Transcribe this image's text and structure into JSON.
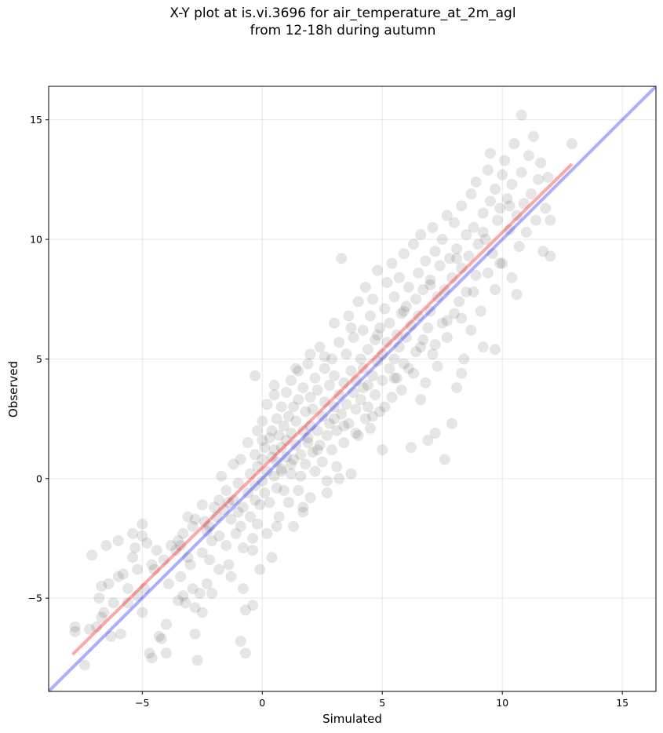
{
  "chart_data": {
    "type": "scatter",
    "title": "X-Y plot at is.vi.3696 for air_temperature_at_2m_agl\nfrom 12-18h during autumn",
    "xlabel": "Simulated",
    "ylabel": "Observed",
    "xlim": [
      -8.9,
      16.4
    ],
    "ylim": [
      -8.9,
      16.4
    ],
    "xticks": [
      -5,
      0,
      5,
      10,
      15
    ],
    "yticks": [
      -5,
      0,
      5,
      10,
      15
    ],
    "xtick_labels": [
      "−5",
      "0",
      "5",
      "10",
      "15"
    ],
    "ytick_labels": [
      "−5",
      "0",
      "5",
      "10",
      "15"
    ],
    "grid": true,
    "point_color": "#000000",
    "point_alpha": 0.1,
    "fit_line": {
      "color": "#ff0000",
      "alpha": 0.35,
      "x": [
        -7.9,
        12.9
      ],
      "y": [
        -7.35,
        13.15
      ]
    },
    "identity_line": {
      "color": "#0000ff",
      "alpha": 0.32,
      "x": [
        -8.9,
        16.4
      ],
      "y": [
        -8.9,
        16.4
      ]
    },
    "points": [
      [
        -7.8,
        -6.4
      ],
      [
        -7.8,
        -6.2
      ],
      [
        -7.4,
        -7.8
      ],
      [
        -7.2,
        -6.3
      ],
      [
        -7.1,
        -3.2
      ],
      [
        -6.9,
        -6.2
      ],
      [
        -6.8,
        -5.0
      ],
      [
        -6.7,
        -4.5
      ],
      [
        -6.6,
        -5.6
      ],
      [
        -6.5,
        -2.8
      ],
      [
        -6.4,
        -4.4
      ],
      [
        -6.3,
        -6.6
      ],
      [
        -6.2,
        -5.2
      ],
      [
        -6.0,
        -4.1
      ],
      [
        -6.0,
        -2.6
      ],
      [
        -5.9,
        -6.5
      ],
      [
        -5.8,
        -4.0
      ],
      [
        -5.6,
        -5.2
      ],
      [
        -5.4,
        -3.3
      ],
      [
        -5.3,
        -2.9
      ],
      [
        -5.2,
        -4.9
      ],
      [
        -5.2,
        -3.8
      ],
      [
        -5.0,
        -2.4
      ],
      [
        -5.0,
        -1.9
      ],
      [
        -5.0,
        -5.6
      ],
      [
        -4.9,
        -4.6
      ],
      [
        -4.8,
        -2.7
      ],
      [
        -4.7,
        -7.3
      ],
      [
        -4.6,
        -7.5
      ],
      [
        -4.4,
        -3.0
      ],
      [
        -4.3,
        -6.6
      ],
      [
        -4.2,
        -6.7
      ],
      [
        -4.1,
        -3.4
      ],
      [
        -4.0,
        -7.3
      ],
      [
        -4.0,
        -6.1
      ],
      [
        -3.9,
        -4.4
      ],
      [
        -3.8,
        -2.8
      ],
      [
        -3.6,
        -3.0
      ],
      [
        -3.5,
        -2.6
      ],
      [
        -3.4,
        -4.1
      ],
      [
        -3.3,
        -4.9
      ],
      [
        -3.3,
        -2.3
      ],
      [
        -3.2,
        -5.2
      ],
      [
        -3.1,
        -3.3
      ],
      [
        -3.1,
        -1.6
      ],
      [
        -3.0,
        -3.6
      ],
      [
        -2.9,
        -2.0
      ],
      [
        -2.9,
        -4.6
      ],
      [
        -2.8,
        -5.4
      ],
      [
        -2.8,
        -1.7
      ],
      [
        -2.8,
        -6.5
      ],
      [
        -2.7,
        -7.6
      ],
      [
        -2.6,
        -4.8
      ],
      [
        -2.5,
        -3.1
      ],
      [
        -2.5,
        -5.6
      ],
      [
        -2.4,
        -1.8
      ],
      [
        -2.3,
        -4.4
      ],
      [
        -2.2,
        -3.4
      ],
      [
        -2.2,
        -2.0
      ],
      [
        -2.1,
        -2.6
      ],
      [
        -2.1,
        -4.8
      ],
      [
        -2.0,
        -1.2
      ],
      [
        -1.9,
        -1.6
      ],
      [
        -1.8,
        -3.8
      ],
      [
        -1.8,
        -2.4
      ],
      [
        -1.8,
        -0.9
      ],
      [
        -1.7,
        0.1
      ],
      [
        -1.6,
        -1.3
      ],
      [
        -1.5,
        -2.8
      ],
      [
        -1.5,
        -0.5
      ],
      [
        -1.4,
        -3.6
      ],
      [
        -1.3,
        -1.7
      ],
      [
        -1.2,
        0.6
      ],
      [
        -1.2,
        -0.9
      ],
      [
        -1.1,
        -2.3
      ],
      [
        -1.0,
        -1.4
      ],
      [
        -1.0,
        -0.2
      ],
      [
        -0.9,
        -2.0
      ],
      [
        -0.9,
        0.8
      ],
      [
        -0.8,
        -1.2
      ],
      [
        -0.8,
        -2.9
      ],
      [
        -0.8,
        -4.6
      ],
      [
        -0.7,
        -7.3
      ],
      [
        -0.7,
        -5.5
      ],
      [
        -0.6,
        -0.6
      ],
      [
        -0.6,
        1.5
      ],
      [
        -0.5,
        -1.6
      ],
      [
        -0.5,
        0.2
      ],
      [
        -0.4,
        -2.5
      ],
      [
        -0.4,
        -5.3
      ],
      [
        -0.3,
        -0.9
      ],
      [
        -0.3,
        1.0
      ],
      [
        -0.2,
        -1.9
      ],
      [
        -0.2,
        2.0
      ],
      [
        -0.2,
        0.5
      ],
      [
        -0.1,
        -3.8
      ],
      [
        -0.1,
        -1.1
      ],
      [
        0.0,
        0.8
      ],
      [
        0.0,
        -0.1
      ],
      [
        0.0,
        2.4
      ],
      [
        0.1,
        1.3
      ],
      [
        0.1,
        -0.6
      ],
      [
        0.2,
        3.1
      ],
      [
        0.2,
        -2.3
      ],
      [
        0.2,
        0.3
      ],
      [
        0.3,
        1.7
      ],
      [
        0.3,
        -1.0
      ],
      [
        0.4,
        0.9
      ],
      [
        0.4,
        2.0
      ],
      [
        0.4,
        -3.3
      ],
      [
        0.5,
        0.1
      ],
      [
        0.5,
        1.2
      ],
      [
        0.5,
        3.5
      ],
      [
        0.6,
        -0.4
      ],
      [
        0.6,
        2.5
      ],
      [
        0.6,
        0.7
      ],
      [
        0.7,
        1.8
      ],
      [
        0.7,
        -1.6
      ],
      [
        0.8,
        0.3
      ],
      [
        0.8,
        3.0
      ],
      [
        0.8,
        1.3
      ],
      [
        0.9,
        2.2
      ],
      [
        0.9,
        -0.5
      ],
      [
        1.0,
        0.9
      ],
      [
        1.0,
        3.6
      ],
      [
        1.0,
        1.6
      ],
      [
        1.1,
        -1.0
      ],
      [
        1.1,
        2.6
      ],
      [
        1.2,
        0.2
      ],
      [
        1.2,
        4.1
      ],
      [
        1.2,
        1.9
      ],
      [
        1.3,
        -2.0
      ],
      [
        1.3,
        3.0
      ],
      [
        1.3,
        0.8
      ],
      [
        1.4,
        1.4
      ],
      [
        1.4,
        2.4
      ],
      [
        1.5,
        -0.5
      ],
      [
        1.5,
        4.5
      ],
      [
        1.5,
        3.3
      ],
      [
        1.6,
        1.0
      ],
      [
        1.6,
        0.1
      ],
      [
        1.7,
        2.0
      ],
      [
        1.7,
        3.8
      ],
      [
        1.7,
        -1.4
      ],
      [
        1.8,
        2.8
      ],
      [
        1.8,
        0.6
      ],
      [
        1.9,
        1.5
      ],
      [
        1.9,
        4.8
      ],
      [
        2.0,
        2.2
      ],
      [
        2.0,
        3.4
      ],
      [
        2.0,
        -0.8
      ],
      [
        2.1,
        1.1
      ],
      [
        2.1,
        2.9
      ],
      [
        2.2,
        0.3
      ],
      [
        2.2,
        4.2
      ],
      [
        2.3,
        2.0
      ],
      [
        2.3,
        3.7
      ],
      [
        2.4,
        1.4
      ],
      [
        2.4,
        5.5
      ],
      [
        2.5,
        2.6
      ],
      [
        2.5,
        0.7
      ],
      [
        2.6,
        3.2
      ],
      [
        2.6,
        4.6
      ],
      [
        2.7,
        1.8
      ],
      [
        2.7,
        -0.1
      ],
      [
        2.8,
        3.9
      ],
      [
        2.8,
        2.3
      ],
      [
        2.9,
        5.0
      ],
      [
        2.9,
        1.2
      ],
      [
        3.0,
        3.0
      ],
      [
        3.0,
        6.5
      ],
      [
        3.0,
        4.3
      ],
      [
        3.1,
        2.0
      ],
      [
        3.1,
        0.5
      ],
      [
        3.2,
        3.5
      ],
      [
        3.2,
        5.7
      ],
      [
        3.3,
        2.7
      ],
      [
        3.3,
        9.2
      ],
      [
        3.4,
        4.0
      ],
      [
        3.4,
        1.5
      ],
      [
        3.5,
        3.1
      ],
      [
        3.5,
        5.2
      ],
      [
        3.6,
        2.3
      ],
      [
        3.6,
        6.8
      ],
      [
        3.7,
        4.5
      ],
      [
        3.7,
        0.2
      ],
      [
        3.8,
        3.6
      ],
      [
        3.8,
        5.9
      ],
      [
        3.9,
        2.9
      ],
      [
        3.9,
        4.1
      ],
      [
        4.0,
        7.4
      ],
      [
        4.0,
        1.8
      ],
      [
        4.1,
        5.0
      ],
      [
        4.1,
        3.3
      ],
      [
        4.2,
        6.2
      ],
      [
        4.2,
        4.6
      ],
      [
        4.3,
        2.5
      ],
      [
        4.3,
        8.0
      ],
      [
        4.4,
        3.9
      ],
      [
        4.4,
        5.4
      ],
      [
        4.5,
        6.8
      ],
      [
        4.5,
        2.1
      ],
      [
        4.6,
        4.3
      ],
      [
        4.6,
        7.5
      ],
      [
        4.7,
        5.8
      ],
      [
        4.7,
        3.5
      ],
      [
        4.8,
        4.9
      ],
      [
        4.8,
        8.7
      ],
      [
        4.9,
        6.3
      ],
      [
        4.9,
        2.8
      ],
      [
        5.0,
        5.2
      ],
      [
        5.0,
        4.1
      ],
      [
        5.1,
        7.1
      ],
      [
        5.1,
        3.0
      ],
      [
        5.2,
        5.7
      ],
      [
        5.2,
        8.2
      ],
      [
        5.3,
        4.6
      ],
      [
        5.3,
        6.5
      ],
      [
        5.4,
        3.4
      ],
      [
        5.4,
        9.0
      ],
      [
        5.5,
        5.0
      ],
      [
        5.5,
        7.6
      ],
      [
        5.6,
        6.0
      ],
      [
        5.6,
        4.2
      ],
      [
        5.7,
        8.4
      ],
      [
        5.7,
        5.5
      ],
      [
        5.8,
        3.7
      ],
      [
        5.8,
        6.9
      ],
      [
        5.9,
        9.4
      ],
      [
        5.9,
        4.8
      ],
      [
        6.0,
        7.2
      ],
      [
        6.0,
        5.9
      ],
      [
        6.1,
        8.0
      ],
      [
        6.2,
        1.3
      ],
      [
        6.2,
        6.4
      ],
      [
        6.3,
        4.4
      ],
      [
        6.3,
        9.8
      ],
      [
        6.4,
        7.5
      ],
      [
        6.4,
        5.3
      ],
      [
        6.5,
        8.6
      ],
      [
        6.5,
        6.8
      ],
      [
        6.6,
        3.3
      ],
      [
        6.6,
        10.2
      ],
      [
        6.7,
        7.9
      ],
      [
        6.7,
        5.8
      ],
      [
        6.8,
        9.1
      ],
      [
        6.9,
        6.3
      ],
      [
        6.9,
        1.6
      ],
      [
        7.0,
        8.3
      ],
      [
        7.0,
        7.0
      ],
      [
        7.1,
        10.5
      ],
      [
        7.1,
        5.2
      ],
      [
        7.2,
        9.5
      ],
      [
        7.2,
        1.9
      ],
      [
        7.3,
        7.6
      ],
      [
        7.3,
        4.7
      ],
      [
        7.4,
        8.9
      ],
      [
        7.5,
        6.5
      ],
      [
        7.5,
        10.0
      ],
      [
        7.6,
        0.8
      ],
      [
        7.6,
        7.9
      ],
      [
        7.7,
        11.0
      ],
      [
        7.7,
        5.9
      ],
      [
        7.8,
        9.2
      ],
      [
        7.9,
        2.3
      ],
      [
        7.9,
        8.4
      ],
      [
        8.0,
        6.9
      ],
      [
        8.0,
        10.7
      ],
      [
        8.1,
        3.8
      ],
      [
        8.1,
        9.6
      ],
      [
        8.2,
        7.4
      ],
      [
        8.3,
        11.4
      ],
      [
        8.3,
        8.8
      ],
      [
        8.4,
        5.0
      ],
      [
        8.5,
        10.2
      ],
      [
        8.5,
        7.8
      ],
      [
        8.6,
        9.3
      ],
      [
        8.7,
        11.9
      ],
      [
        8.7,
        6.2
      ],
      [
        8.8,
        10.5
      ],
      [
        8.9,
        8.5
      ],
      [
        8.9,
        12.4
      ],
      [
        9.0,
        9.8
      ],
      [
        9.1,
        7.0
      ],
      [
        9.2,
        11.1
      ],
      [
        9.2,
        5.5
      ],
      [
        9.3,
        10.0
      ],
      [
        9.4,
        12.9
      ],
      [
        9.4,
        8.6
      ],
      [
        9.5,
        11.6
      ],
      [
        9.5,
        13.6
      ],
      [
        9.6,
        9.4
      ],
      [
        9.7,
        7.9
      ],
      [
        9.7,
        12.1
      ],
      [
        9.8,
        10.8
      ],
      [
        9.9,
        11.3
      ],
      [
        10.0,
        12.7
      ],
      [
        10.0,
        9.0
      ],
      [
        10.1,
        13.3
      ],
      [
        10.2,
        11.7
      ],
      [
        10.3,
        10.4
      ],
      [
        10.4,
        8.4
      ],
      [
        10.4,
        12.3
      ],
      [
        10.5,
        14.0
      ],
      [
        10.6,
        11.0
      ],
      [
        10.7,
        9.7
      ],
      [
        10.8,
        15.2
      ],
      [
        10.8,
        12.8
      ],
      [
        10.9,
        11.5
      ],
      [
        11.0,
        10.3
      ],
      [
        11.1,
        13.5
      ],
      [
        11.2,
        11.9
      ],
      [
        11.3,
        14.3
      ],
      [
        11.4,
        10.8
      ],
      [
        11.5,
        12.5
      ],
      [
        11.6,
        13.2
      ],
      [
        11.7,
        9.5
      ],
      [
        11.8,
        11.3
      ],
      [
        11.9,
        12.6
      ],
      [
        12.0,
        9.3
      ],
      [
        12.0,
        10.8
      ],
      [
        12.9,
        14.0
      ],
      [
        10.6,
        7.7
      ],
      [
        8.3,
        4.4
      ],
      [
        9.7,
        5.4
      ],
      [
        6.8,
        4.0
      ],
      [
        5.0,
        1.2
      ],
      [
        4.6,
        2.6
      ],
      [
        3.9,
        1.9
      ],
      [
        2.7,
        -0.6
      ],
      [
        1.7,
        -1.2
      ],
      [
        3.2,
        0.0
      ],
      [
        0.6,
        -2.0
      ],
      [
        -0.4,
        -3.0
      ],
      [
        -0.9,
        -6.8
      ],
      [
        -1.3,
        -4.1
      ],
      [
        -2.5,
        -1.1
      ],
      [
        -3.5,
        -5.1
      ],
      [
        -4.6,
        -3.6
      ],
      [
        -5.4,
        -2.3
      ],
      [
        2.0,
        5.2
      ],
      [
        1.4,
        4.6
      ],
      [
        0.5,
        3.9
      ],
      [
        -0.3,
        4.3
      ],
      [
        0.0,
        1.6
      ],
      [
        1.2,
        0.6
      ],
      [
        2.3,
        1.2
      ],
      [
        3.4,
        2.2
      ],
      [
        4.4,
        3.0
      ],
      [
        5.5,
        4.2
      ],
      [
        6.6,
        5.5
      ],
      [
        7.7,
        6.6
      ],
      [
        8.8,
        7.8
      ],
      [
        9.9,
        9.0
      ],
      [
        3.7,
        6.3
      ],
      [
        2.6,
        5.1
      ],
      [
        4.8,
        6.0
      ],
      [
        5.9,
        7.0
      ],
      [
        7.0,
        8.1
      ],
      [
        8.1,
        9.2
      ],
      [
        9.2,
        10.3
      ],
      [
        10.3,
        11.4
      ],
      [
        6.1,
        4.6
      ],
      [
        7.2,
        5.6
      ],
      [
        8.3,
        6.7
      ],
      [
        4.2,
        3.8
      ],
      [
        3.0,
        2.5
      ],
      [
        1.9,
        1.7
      ],
      [
        0.8,
        0.4
      ],
      [
        -0.3,
        -0.3
      ],
      [
        -1.4,
        -1.0
      ],
      [
        -2.3,
        -2.2
      ],
      [
        -3.4,
        -2.8
      ],
      [
        -4.5,
        -3.8
      ],
      [
        -5.6,
        -4.6
      ],
      [
        -6.7,
        -5.8
      ]
    ]
  }
}
